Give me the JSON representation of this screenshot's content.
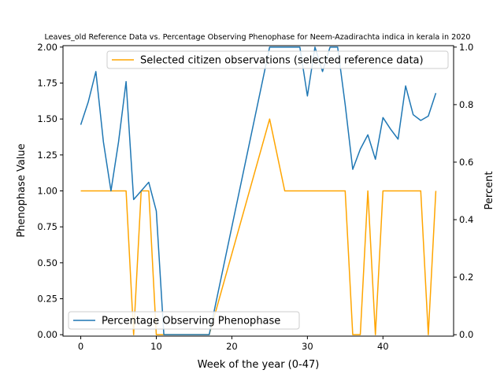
{
  "chart_data": {
    "type": "line",
    "title": "Leaves_old Reference Data vs. Percentage Observing Phenophase for Neem-Azadirachta indica in kerala in 2020",
    "xlabel": "Week of the year (0-47)",
    "ylabel_left": "Phenophase Value",
    "ylabel_right": "Percent",
    "xlim": [
      -2.35,
      49.35
    ],
    "ylim_left": [
      -0.01,
      2.01
    ],
    "ylim_right": [
      -0.005,
      1.005
    ],
    "x_ticks": [
      0,
      10,
      20,
      30,
      40
    ],
    "x_tick_labels": [
      "0",
      "10",
      "20",
      "30",
      "40"
    ],
    "y_left_ticks": [
      0,
      0.25,
      0.5,
      0.75,
      1.0,
      1.25,
      1.5,
      1.75,
      2.0
    ],
    "y_left_tick_labels": [
      "0.00",
      "0.25",
      "0.50",
      "0.75",
      "1.00",
      "1.25",
      "1.50",
      "1.75",
      "2.00"
    ],
    "y_right_ticks": [
      0,
      0.2,
      0.4,
      0.6,
      0.8,
      1.0
    ],
    "y_right_tick_labels": [
      "0.0",
      "0.2",
      "0.4",
      "0.6",
      "0.8",
      "1.0"
    ],
    "grid": false,
    "series": [
      {
        "name": "Selected citizen observations (selected reference data)",
        "axis": "left",
        "color": "#ffa500",
        "legend_position": "upper-right",
        "x": [
          0,
          1,
          2,
          3,
          4,
          5,
          6,
          7,
          8,
          9,
          10,
          11,
          17,
          25,
          27,
          35,
          36,
          37,
          38,
          39,
          40,
          45,
          46,
          47
        ],
        "y": [
          1,
          1,
          1,
          1,
          1,
          1,
          1,
          0,
          1,
          1,
          0,
          0,
          0,
          1.5,
          1,
          1,
          0,
          0,
          1,
          0,
          1,
          1,
          0,
          1
        ]
      },
      {
        "name": "Percentage Observing Phenophase",
        "axis": "right",
        "color": "#1f77b4",
        "legend_position": "lower-left",
        "x": [
          0,
          1,
          2,
          3,
          4,
          5,
          6,
          7,
          8,
          9,
          10,
          11,
          17,
          25,
          29,
          30,
          31,
          32,
          33,
          34,
          35,
          36,
          37,
          38,
          39,
          40,
          41,
          42,
          43,
          44,
          45,
          46,
          47
        ],
        "y": [
          0.73,
          0.81,
          0.915,
          0.67,
          0.5,
          0.67,
          0.88,
          0.47,
          0.5,
          0.53,
          0.43,
          0,
          0,
          1,
          1,
          0.83,
          1,
          0.915,
          1,
          1,
          0.8,
          0.575,
          0.645,
          0.695,
          0.61,
          0.755,
          0.715,
          0.68,
          0.865,
          0.765,
          0.745,
          0.76,
          0.84
        ]
      }
    ]
  }
}
